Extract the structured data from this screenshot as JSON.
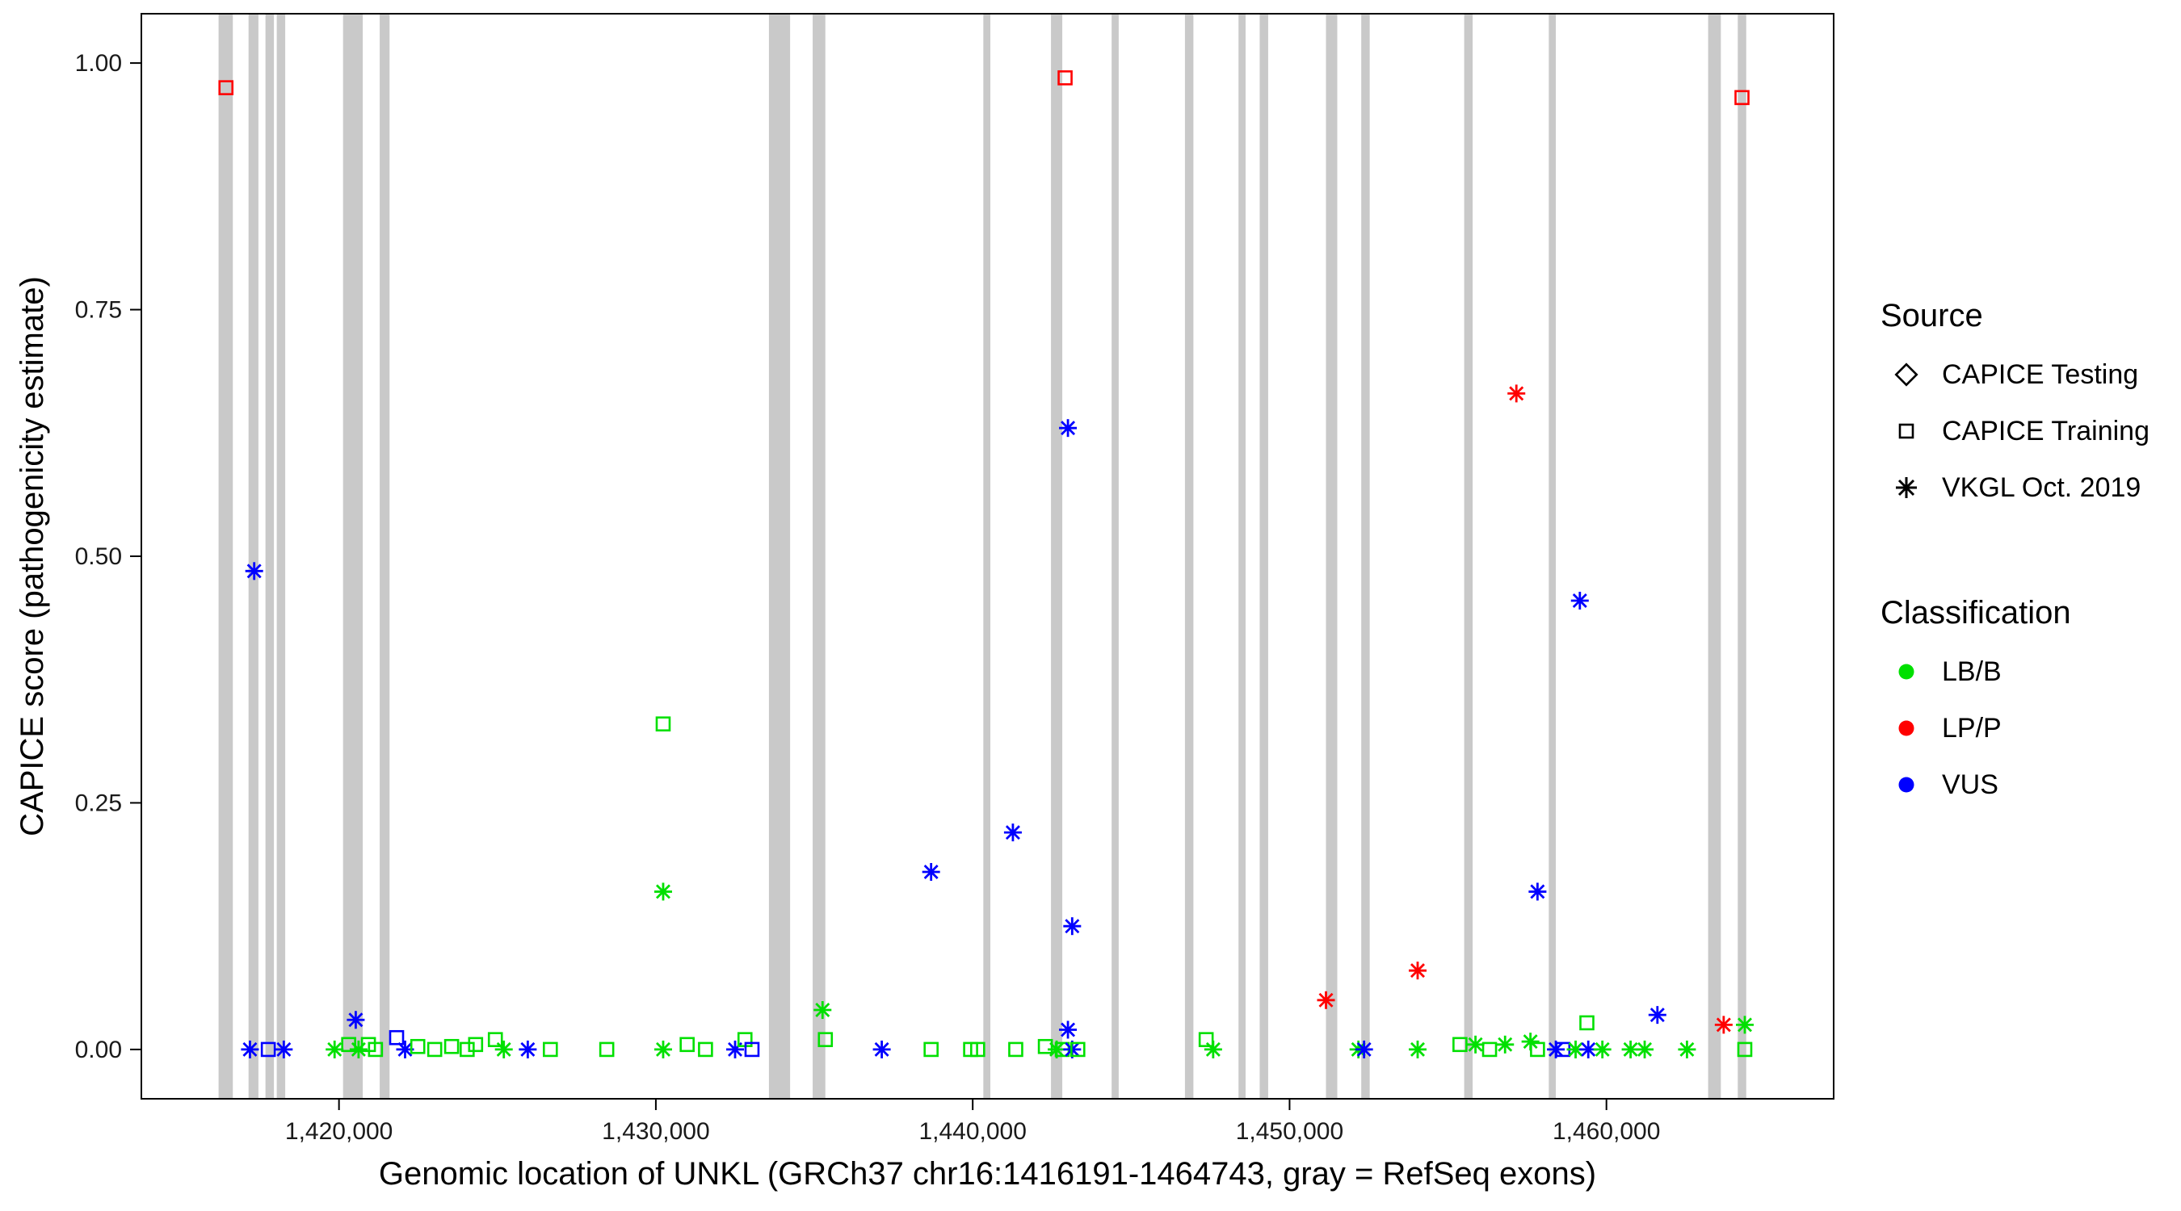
{
  "chart_data": {
    "type": "scatter",
    "title": "",
    "xlabel": "Genomic location of UNKL (GRCh37 chr16:1416191-1464743, gray = RefSeq exons)",
    "ylabel": "CAPICE score (pathogenicity estimate)",
    "xlim": [
      1413763,
      1467171
    ],
    "ylim": [
      -0.05,
      1.05
    ],
    "gene_range": [
      1416191,
      1464743
    ],
    "grid": false,
    "x_ticks": [
      {
        "value": 1420000,
        "label": "1,420,000"
      },
      {
        "value": 1430000,
        "label": "1,430,000"
      },
      {
        "value": 1440000,
        "label": "1,440,000"
      },
      {
        "value": 1450000,
        "label": "1,450,000"
      },
      {
        "value": 1460000,
        "label": "1,460,000"
      }
    ],
    "y_ticks": [
      {
        "value": 0,
        "label": "0.00"
      },
      {
        "value": 0.25,
        "label": "0.25"
      },
      {
        "value": 0.5,
        "label": "0.50"
      },
      {
        "value": 0.75,
        "label": "0.75"
      },
      {
        "value": 1,
        "label": "1.00"
      }
    ],
    "exon_color": "#C9C9C9",
    "exons": [
      {
        "start": 1416200,
        "end": 1416650
      },
      {
        "start": 1417146,
        "end": 1417457
      },
      {
        "start": 1417680,
        "end": 1417947
      },
      {
        "start": 1418036,
        "end": 1418303
      },
      {
        "start": 1420128,
        "end": 1420751
      },
      {
        "start": 1421285,
        "end": 1421596
      },
      {
        "start": 1433569,
        "end": 1434237
      },
      {
        "start": 1434949,
        "end": 1435349
      },
      {
        "start": 1440335,
        "end": 1440557
      },
      {
        "start": 1442471,
        "end": 1442827
      },
      {
        "start": 1444384,
        "end": 1444607
      },
      {
        "start": 1446698,
        "end": 1446965
      },
      {
        "start": 1448389,
        "end": 1448612
      },
      {
        "start": 1449057,
        "end": 1449324
      },
      {
        "start": 1451149,
        "end": 1451505
      },
      {
        "start": 1452262,
        "end": 1452529
      },
      {
        "start": 1455511,
        "end": 1455778
      },
      {
        "start": 1458181,
        "end": 1458403
      },
      {
        "start": 1463210,
        "end": 1463611
      },
      {
        "start": 1464145,
        "end": 1464412
      }
    ],
    "class_colors": {
      "LB/B": "#00E000",
      "LP/P": "#FF0000",
      "VUS": "#0000FF"
    },
    "source_shapes": {
      "testing": "diamond",
      "training": "square",
      "vkgl": "asterisk"
    },
    "points_fields": [
      "x",
      "y",
      "source",
      "classification"
    ],
    "points": [
      [
        1416433,
        0.975,
        "training",
        "LP/P"
      ],
      [
        1442916,
        0.985,
        "training",
        "LP/P"
      ],
      [
        1464278,
        0.965,
        "training",
        "LP/P"
      ],
      [
        1417324,
        0.485,
        "vkgl",
        "VUS"
      ],
      [
        1430231,
        0.33,
        "training",
        "LB/B"
      ],
      [
        1430231,
        0.16,
        "vkgl",
        "LB/B"
      ],
      [
        1438687,
        0.18,
        "vkgl",
        "VUS"
      ],
      [
        1441268,
        0.22,
        "vkgl",
        "VUS"
      ],
      [
        1443005,
        0.63,
        "vkgl",
        "VUS"
      ],
      [
        1443139,
        0.125,
        "vkgl",
        "VUS"
      ],
      [
        1443005,
        0.02,
        "vkgl",
        "VUS"
      ],
      [
        1451149,
        0.05,
        "vkgl",
        "LP/P"
      ],
      [
        1454042,
        0.08,
        "vkgl",
        "LP/P"
      ],
      [
        1457158,
        0.665,
        "vkgl",
        "LP/P"
      ],
      [
        1457825,
        0.16,
        "vkgl",
        "VUS"
      ],
      [
        1459161,
        0.455,
        "vkgl",
        "VUS"
      ],
      [
        1461609,
        0.035,
        "vkgl",
        "VUS"
      ],
      [
        1459383,
        0.027,
        "training",
        "LB/B"
      ],
      [
        1463700,
        0.025,
        "vkgl",
        "LP/P"
      ],
      [
        1464367,
        0.025,
        "vkgl",
        "LB/B"
      ],
      [
        1420529,
        0.03,
        "vkgl",
        "VUS"
      ],
      [
        1421819,
        0.012,
        "training",
        "VUS"
      ],
      [
        1435261,
        0.04,
        "vkgl",
        "LB/B"
      ],
      [
        1417190,
        0,
        "vkgl",
        "VUS"
      ],
      [
        1417769,
        0,
        "training",
        "VUS"
      ],
      [
        1418258,
        0,
        "vkgl",
        "VUS"
      ],
      [
        1419861,
        0,
        "vkgl",
        "LB/B"
      ],
      [
        1420306,
        0.005,
        "training",
        "LB/B"
      ],
      [
        1420618,
        0,
        "vkgl",
        "LB/B"
      ],
      [
        1420929,
        0.005,
        "training",
        "LB/B"
      ],
      [
        1421152,
        0,
        "training",
        "LB/B"
      ],
      [
        1422086,
        0,
        "vkgl",
        "VUS"
      ],
      [
        1422487,
        0.003,
        "training",
        "LB/B"
      ],
      [
        1423021,
        0,
        "training",
        "LB/B"
      ],
      [
        1423555,
        0.003,
        "training",
        "LB/B"
      ],
      [
        1424045,
        0,
        "training",
        "LB/B"
      ],
      [
        1424312,
        0.005,
        "training",
        "LB/B"
      ],
      [
        1424935,
        0.01,
        "training",
        "LB/B"
      ],
      [
        1425202,
        0,
        "vkgl",
        "LB/B"
      ],
      [
        1425958,
        0,
        "vkgl",
        "VUS"
      ],
      [
        1426670,
        0,
        "training",
        "LB/B"
      ],
      [
        1428451,
        0,
        "training",
        "LB/B"
      ],
      [
        1430231,
        0,
        "vkgl",
        "LB/B"
      ],
      [
        1430988,
        0.005,
        "training",
        "LB/B"
      ],
      [
        1431567,
        0,
        "training",
        "LB/B"
      ],
      [
        1432501,
        0,
        "vkgl",
        "VUS"
      ],
      [
        1432813,
        0.01,
        "training",
        "LB/B"
      ],
      [
        1433035,
        0,
        "training",
        "VUS"
      ],
      [
        1435350,
        0.01,
        "training",
        "LB/B"
      ],
      [
        1437130,
        0,
        "vkgl",
        "VUS"
      ],
      [
        1438687,
        0,
        "training",
        "LB/B"
      ],
      [
        1439934,
        0,
        "training",
        "LB/B"
      ],
      [
        1440156,
        0,
        "training",
        "LB/B"
      ],
      [
        1441358,
        0,
        "training",
        "LB/B"
      ],
      [
        1442292,
        0.003,
        "training",
        "LB/B"
      ],
      [
        1442648,
        0,
        "vkgl",
        "LB/B"
      ],
      [
        1442826,
        0,
        "training",
        "LB/B"
      ],
      [
        1443139,
        0,
        "vkgl",
        "VUS"
      ],
      [
        1443317,
        0,
        "training",
        "LB/B"
      ],
      [
        1447367,
        0.01,
        "training",
        "LB/B"
      ],
      [
        1447589,
        0,
        "vkgl",
        "LB/B"
      ],
      [
        1452173,
        0,
        "vkgl",
        "LB/B"
      ],
      [
        1452351,
        0,
        "vkgl",
        "VUS"
      ],
      [
        1454042,
        0,
        "vkgl",
        "LB/B"
      ],
      [
        1455377,
        0.005,
        "training",
        "LB/B"
      ],
      [
        1455867,
        0.005,
        "vkgl",
        "LB/B"
      ],
      [
        1456312,
        0,
        "training",
        "LB/B"
      ],
      [
        1456801,
        0.005,
        "vkgl",
        "LB/B"
      ],
      [
        1457602,
        0.008,
        "vkgl",
        "LB/B"
      ],
      [
        1457825,
        0,
        "training",
        "LB/B"
      ],
      [
        1458403,
        0,
        "vkgl",
        "VUS"
      ],
      [
        1458626,
        0,
        "training",
        "VUS"
      ],
      [
        1459027,
        0,
        "vkgl",
        "LB/B"
      ],
      [
        1459427,
        0,
        "vkgl",
        "VUS"
      ],
      [
        1459872,
        0,
        "vkgl",
        "LB/B"
      ],
      [
        1460762,
        0,
        "vkgl",
        "LB/B"
      ],
      [
        1461207,
        0,
        "vkgl",
        "LB/B"
      ],
      [
        1462542,
        0,
        "vkgl",
        "LB/B"
      ],
      [
        1464367,
        0,
        "training",
        "LB/B"
      ]
    ]
  },
  "legend": {
    "source": {
      "title": "Source",
      "items": [
        {
          "shape": "diamond",
          "label": "CAPICE Testing"
        },
        {
          "shape": "square",
          "label": "CAPICE Training"
        },
        {
          "shape": "asterisk",
          "label": "VKGL Oct. 2019"
        }
      ]
    },
    "classification": {
      "title": "Classification",
      "items": [
        {
          "color_key": "LB/B",
          "label": "LB/B"
        },
        {
          "color_key": "LP/P",
          "label": "LP/P"
        },
        {
          "color_key": "VUS",
          "label": "VUS"
        }
      ]
    }
  }
}
